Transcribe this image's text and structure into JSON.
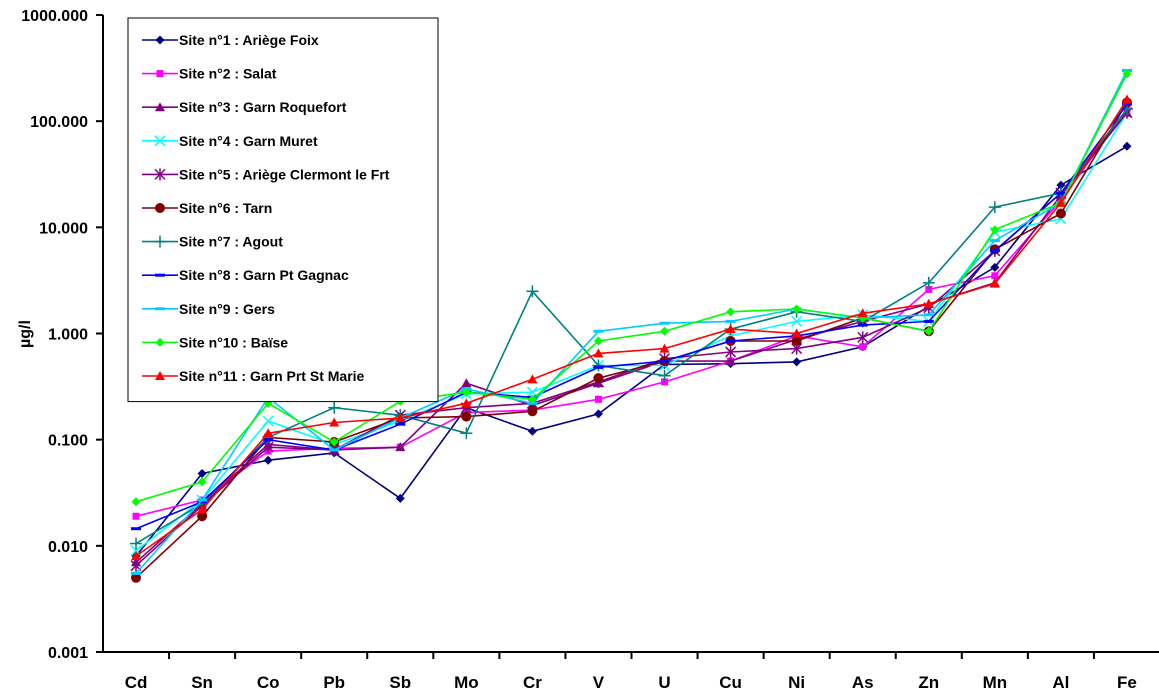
{
  "chart_data": {
    "type": "line",
    "title": "",
    "xlabel": "",
    "ylabel": "µg/l",
    "y_scale": "log",
    "ylim": [
      0.001,
      1000
    ],
    "y_tick_labels": [
      "1000.000",
      "100.000",
      "10.000",
      "1.000",
      "0.100",
      "0.010",
      "0.001"
    ],
    "grid": false,
    "legend_position": "top-left",
    "categories": [
      "Cd",
      "Sn",
      "Co",
      "Pb",
      "Sb",
      "Mo",
      "Cr",
      "V",
      "U",
      "Cu",
      "Ni",
      "As",
      "Zn",
      "Mn",
      "Al",
      "Fe"
    ],
    "series": [
      {
        "name": "Site n°1 : Ariège Foix",
        "color": "#000080",
        "marker": "diamond",
        "values": [
          0.008,
          0.048,
          0.064,
          0.075,
          0.028,
          0.2,
          0.12,
          0.175,
          0.51,
          0.52,
          0.54,
          0.75,
          1.8,
          4.2,
          25,
          58
        ]
      },
      {
        "name": "Site n°2 : Salat",
        "color": "#FF00FF",
        "marker": "square",
        "values": [
          0.019,
          0.027,
          0.078,
          0.083,
          0.085,
          0.18,
          0.19,
          0.24,
          0.35,
          0.55,
          0.95,
          0.75,
          2.6,
          3.5,
          18,
          130
        ]
      },
      {
        "name": "Site n°3 : Garn Roquefort",
        "color": "#800080",
        "marker": "triangle",
        "values": [
          0.007,
          0.025,
          0.09,
          0.08,
          0.085,
          0.34,
          0.21,
          0.34,
          0.55,
          0.55,
          0.88,
          1.3,
          1.9,
          3.0,
          20,
          120
        ]
      },
      {
        "name": "Site n°4 : Garn Muret",
        "color": "#00FFFF",
        "marker": "x",
        "values": [
          0.009,
          0.027,
          0.15,
          0.09,
          0.15,
          0.27,
          0.28,
          0.5,
          0.5,
          0.95,
          1.3,
          1.5,
          1.3,
          9.0,
          12,
          120
        ]
      },
      {
        "name": "Site n°5 : Ariège  Clermont le Frt",
        "color": "#800080",
        "marker": "star",
        "values": [
          0.0065,
          0.024,
          0.085,
          0.08,
          0.17,
          0.2,
          0.22,
          0.35,
          0.58,
          0.67,
          0.72,
          0.92,
          1.75,
          6.0,
          21,
          120
        ]
      },
      {
        "name": "Site n°6 : Tarn",
        "color": "#800000",
        "marker": "circle",
        "values": [
          0.005,
          0.019,
          0.105,
          0.095,
          0.16,
          0.165,
          0.185,
          0.38,
          0.55,
          0.85,
          0.85,
          1.4,
          1.05,
          6.2,
          13.5,
          150
        ]
      },
      {
        "name": "Site n°7 : Agout",
        "color": "#008080",
        "marker": "plus",
        "values": [
          0.0105,
          0.025,
          0.105,
          0.2,
          0.17,
          0.115,
          2.5,
          0.5,
          0.4,
          1.1,
          1.6,
          1.3,
          3.0,
          15.5,
          21,
          130
        ]
      },
      {
        "name": "Site n°8 : Garn Pt Gagnac",
        "color": "#0000FF",
        "marker": "dash",
        "values": [
          0.0145,
          0.026,
          0.1,
          0.08,
          0.14,
          0.28,
          0.25,
          0.48,
          0.55,
          0.85,
          0.95,
          1.2,
          1.3,
          6.0,
          21,
          145
        ]
      },
      {
        "name": "Site n°9 : Gers",
        "color": "#00CCFF",
        "marker": "dash",
        "values": [
          0.0055,
          0.027,
          0.25,
          0.08,
          0.16,
          0.3,
          0.22,
          1.05,
          1.25,
          1.3,
          1.7,
          1.4,
          1.5,
          7.5,
          17,
          300
        ]
      },
      {
        "name": "Site n°10 : Baïse",
        "color": "#00FF00",
        "marker": "diamond",
        "values": [
          0.026,
          0.04,
          0.22,
          0.095,
          0.23,
          0.28,
          0.24,
          0.85,
          1.05,
          1.6,
          1.7,
          1.4,
          1.05,
          9.5,
          17,
          280
        ]
      },
      {
        "name": "Site n°11 : Garn Prt St Marie",
        "color": "#FF0000",
        "marker": "triangle",
        "values": [
          0.008,
          0.022,
          0.115,
          0.145,
          0.16,
          0.22,
          0.37,
          0.65,
          0.72,
          1.1,
          1.0,
          1.55,
          1.9,
          2.95,
          17,
          160
        ]
      }
    ]
  }
}
